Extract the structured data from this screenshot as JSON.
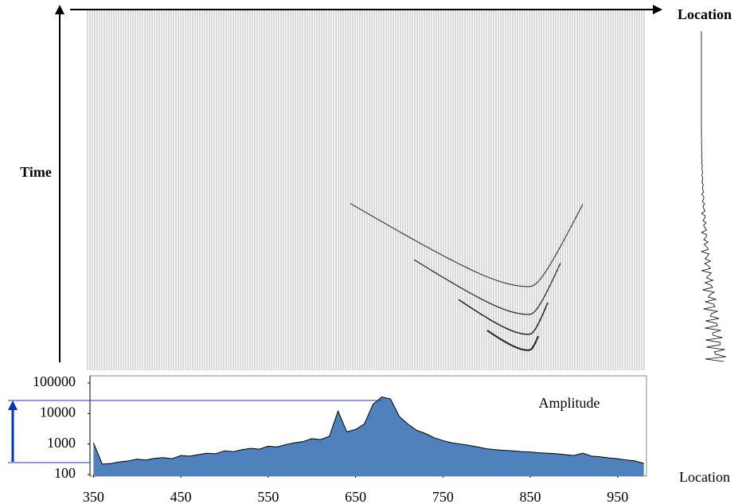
{
  "seismic": {
    "x_label": "Location",
    "y_label": "Time"
  },
  "chart_data": {
    "type": "area",
    "label": "Amplitude",
    "x_label": "Location",
    "x": [
      350,
      360,
      370,
      380,
      390,
      400,
      410,
      420,
      430,
      440,
      450,
      460,
      470,
      480,
      490,
      500,
      510,
      520,
      530,
      540,
      550,
      560,
      570,
      580,
      590,
      600,
      610,
      620,
      630,
      640,
      650,
      660,
      670,
      680,
      690,
      700,
      710,
      720,
      730,
      740,
      750,
      760,
      770,
      780,
      790,
      800,
      810,
      820,
      830,
      840,
      850,
      860,
      870,
      880,
      890,
      900,
      910,
      920,
      930,
      940,
      950,
      960,
      970,
      980
    ],
    "values": [
      1100,
      220,
      230,
      260,
      280,
      320,
      300,
      340,
      360,
      330,
      420,
      400,
      450,
      500,
      480,
      600,
      560,
      650,
      720,
      680,
      850,
      800,
      950,
      1100,
      1200,
      1500,
      1400,
      1800,
      12000,
      2500,
      3000,
      4500,
      20000,
      35000,
      30000,
      8000,
      4500,
      2800,
      2200,
      1600,
      1300,
      1100,
      1000,
      900,
      800,
      700,
      650,
      620,
      600,
      560,
      550,
      520,
      500,
      480,
      450,
      420,
      500,
      400,
      380,
      350,
      330,
      300,
      280,
      230
    ],
    "color": "#4f81bd",
    "log_scale": true,
    "xlim": [
      346,
      983
    ],
    "xticks": [
      350,
      450,
      550,
      650,
      750,
      850,
      950
    ],
    "ylim": [
      100,
      100000
    ],
    "yticks": [
      100,
      1000,
      10000,
      100000
    ]
  }
}
